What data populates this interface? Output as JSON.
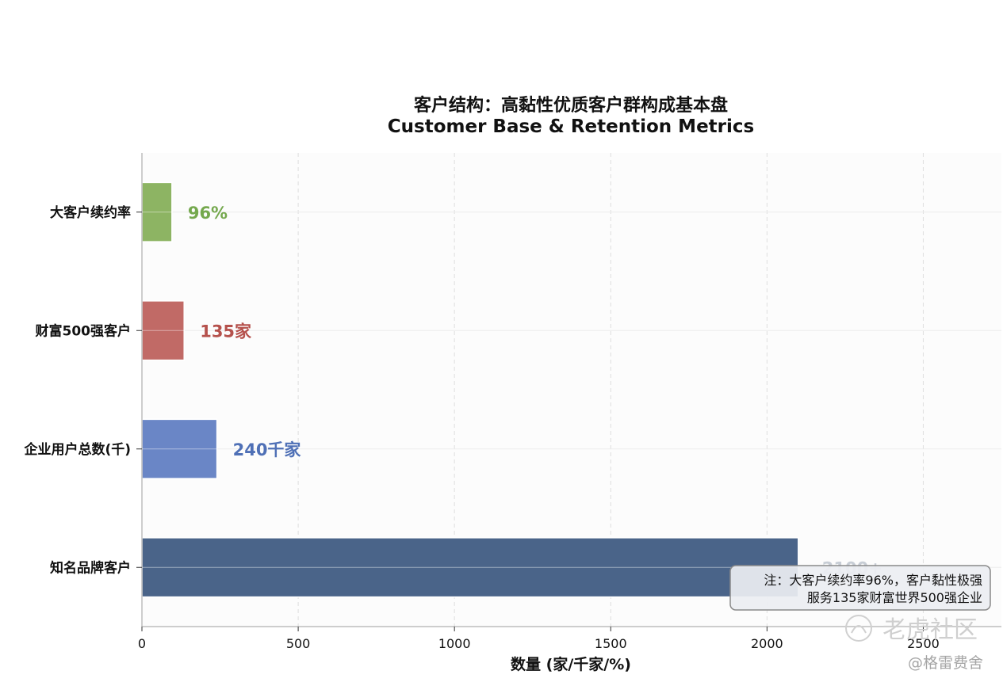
{
  "chart_data": {
    "type": "bar",
    "orientation": "horizontal",
    "title": "客户结构：高黏性优质客户群构成基本盘",
    "subtitle": "Customer Base & Retention Metrics",
    "xlabel": "数量 (家/千家/%)",
    "ylabel": "",
    "xlim": [
      0,
      2750
    ],
    "xticks": [
      0,
      500,
      1000,
      1500,
      2000,
      2500
    ],
    "grid": true,
    "categories": [
      "知名品牌客户",
      "企业用户总数(千)",
      "财富500强客户",
      "大客户续约率"
    ],
    "values": [
      2100,
      240,
      135,
      96
    ],
    "colors": [
      "#4a6489",
      "#6a86c6",
      "#c16a66",
      "#8db463"
    ],
    "label_colors": [
      "#9aa5b4",
      "#4f70b6",
      "#b5514c",
      "#74a84d"
    ],
    "data_labels": [
      "2100+",
      "240千家",
      "135家",
      "96%"
    ],
    "annotation": {
      "lines": [
        "注：大客户续约率96%，客户黏性极强",
        "服务135家财富世界500强企业"
      ],
      "placement": "bottom-right"
    }
  },
  "watermarks": [
    "老虎社区",
    "@格雷费舍"
  ]
}
